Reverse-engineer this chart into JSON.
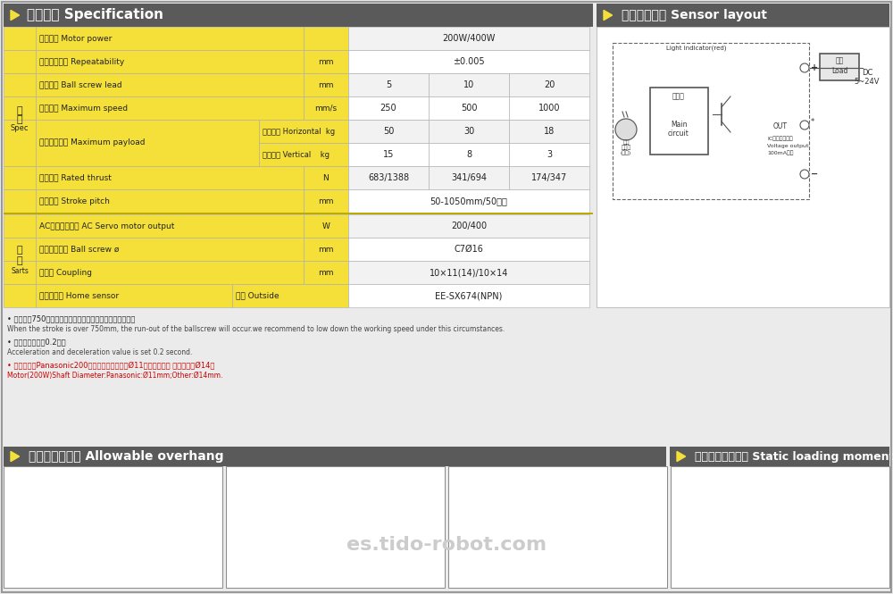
{
  "bg_color": "#ebebeb",
  "header_color": "#5a5a5a",
  "header_text_color": "#ffffff",
  "yellow_color": "#f5e03a",
  "white_color": "#ffffff",
  "light_gray": "#f2f2f2",
  "border_color": "#aaaaaa",
  "title_spec": "基本仕様 Specification",
  "title_sensor": "感应器接线图 Sensor layout",
  "title_overhang": "容许负载力距表 Allowable overhang",
  "title_static": "静态容许负载惯量 Static loading moment",
  "note1_zh": "• 行程超过750时，会产生螺杆偏摔，此时需要降速度运行。",
  "note1_en": "When the stroke is over 750mm, the run-out of the ballscrew will occur.we recommend to low down the working speed under this circumstances.",
  "note2_zh": "• 马达加减速设加0.2秒。",
  "note2_en": "Acceleration and deceleration value is set 0.2 second.",
  "note3_zh": "• 注１：使用Panasonic200马达时，马达轴心为Ø11；其它厂商， 马达轴心为Ø14。",
  "note3_en": "Motor(200W)Shaft Diameter:Panasonic:Ø11mm;Other:Ø14mm.",
  "rows": [
    {
      "param": "马达功率 Motor power",
      "unit": "",
      "v1": "200W/400W",
      "v2": null,
      "v3": null,
      "bg": "gray",
      "span": true
    },
    {
      "param": "位置重复精度 Repeatability",
      "unit": "mm",
      "v1": "±0.005",
      "v2": null,
      "v3": null,
      "bg": "white",
      "span": true
    },
    {
      "param": "螺杆导程 Ball screw lead",
      "unit": "mm",
      "v1": "5",
      "v2": "10",
      "v3": "20",
      "bg": "gray",
      "span": false
    },
    {
      "param": "最高速度 Maximum speed",
      "unit": "mm/s",
      "v1": "250",
      "v2": "500",
      "v3": "1000",
      "bg": "white",
      "span": false
    },
    {
      "param": "定格推力 Rated thrust",
      "unit": "N",
      "v1": "683/1388",
      "v2": "341/694",
      "v3": "174/347",
      "bg": "gray",
      "span": false
    },
    {
      "param": "标准行程 Stroke pitch",
      "unit": "mm",
      "v1": "50-1050mm/50间距",
      "v2": null,
      "v3": null,
      "bg": "white",
      "span": true
    }
  ],
  "rows2": [
    {
      "param": "AC伺服马达容量 AC Servo motor output",
      "unit": "W",
      "v1": "200/400",
      "v2": null,
      "v3": null,
      "bg": "gray",
      "span": true
    },
    {
      "param": "滚珠螺杆外径 Ball screw ø",
      "unit": "mm",
      "v1": "C7Ø16",
      "v2": null,
      "v3": null,
      "bg": "white",
      "span": true
    },
    {
      "param": "联轴器 Coupling",
      "unit": "mm",
      "v1": "10×11(14)/10×14",
      "v2": null,
      "v3": null,
      "bg": "gray",
      "span": true
    }
  ]
}
